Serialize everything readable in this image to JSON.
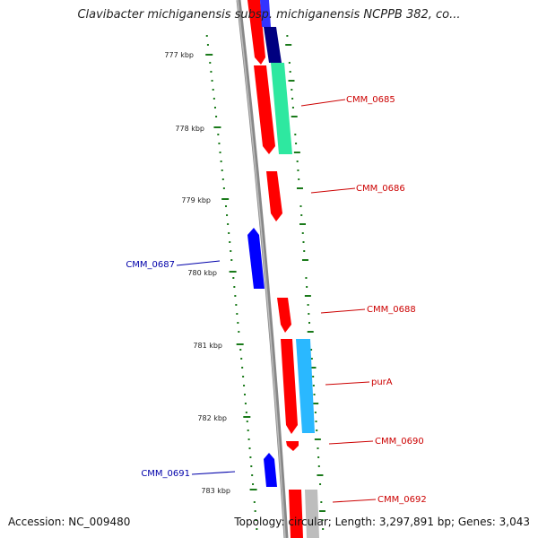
{
  "title": "Clavibacter michiganensis subsp. michiganensis NCPPB 382, co...",
  "footer": {
    "accession": "Accession: NC_009480",
    "topology": "Topology: circular; Length: 3,297,891 bp; Genes: 3,043"
  },
  "colors": {
    "forward": "#ff0000",
    "reverse": "#0000ff",
    "forward_label": "#cc0000",
    "reverse_label": "#0000aa",
    "backbone": "#888888",
    "tick": "#1a7a1a"
  },
  "ticks": [
    "777 kbp",
    "778 kbp",
    "779 kbp",
    "780 kbp",
    "781 kbp",
    "782 kbp",
    "783 kbp"
  ],
  "gene_labels": [
    {
      "text": "CMM_0685",
      "strand": "forward"
    },
    {
      "text": "CMM_0686",
      "strand": "forward"
    },
    {
      "text": "CMM_0687",
      "strand": "reverse"
    },
    {
      "text": "CMM_0688",
      "strand": "forward"
    },
    {
      "text": "purA",
      "strand": "forward"
    },
    {
      "text": "CMM_0690",
      "strand": "forward"
    },
    {
      "text": "CMM_0691",
      "strand": "reverse"
    },
    {
      "text": "CMM_0692",
      "strand": "forward"
    }
  ]
}
